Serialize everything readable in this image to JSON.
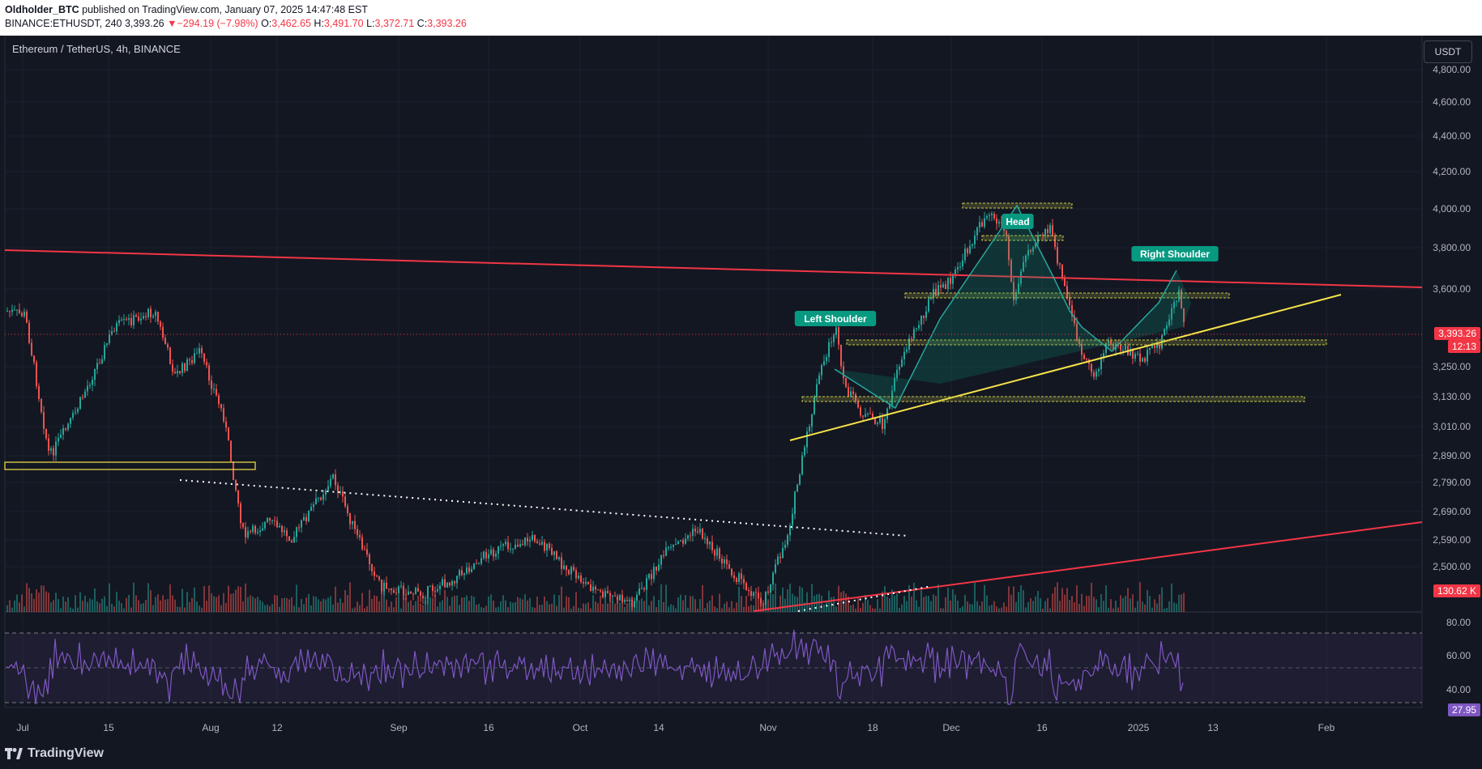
{
  "header": {
    "author": "Oldholder_BTC",
    "published": "published on TradingView.com, January 07, 2025 14:47:48 EST",
    "symbol_line_prefix": "BINANCE:ETHUSDT, 240",
    "last_price": "3,393.26",
    "change_arrow": "▼",
    "change": "−294.19 (−7.98%)",
    "o_label": "O:",
    "o_value": "3,462.65",
    "h_label": "H:",
    "h_value": "3,491.70",
    "l_label": "L:",
    "l_value": "3,372.71",
    "c_label": "C:",
    "c_value": "3,393.26"
  },
  "chart": {
    "title": "Ethereum / TetherUS, 4h, BINANCE",
    "currency": "USDT",
    "price_axis": [
      "4,800.00",
      "4,600.00",
      "4,400.00",
      "4,200.00",
      "4,000.00",
      "3,800.00",
      "3,600.00",
      "3,250.00",
      "3,130.00",
      "3,010.00",
      "2,890.00",
      "2,790.00",
      "2,690.00",
      "2,590.00",
      "2,500.00"
    ],
    "rsi_axis": [
      "80.00",
      "60.00",
      "40.00"
    ],
    "time_axis": [
      "Jul",
      "15",
      "Aug",
      "12",
      "Sep",
      "16",
      "Oct",
      "14",
      "Nov",
      "18",
      "Dec",
      "16",
      "2025",
      "13",
      "Feb"
    ],
    "current_price_tag": "3,393.26",
    "countdown_tag": "12:13",
    "volume_tag": "130.62 K",
    "rsi_tag": "27.95",
    "annotations": {
      "left_shoulder": "Left Shoulder",
      "head": "Head",
      "right_shoulder": "Right Shoulder"
    },
    "colors": {
      "background": "#131722",
      "up": "#26a69a",
      "down": "#ef5350",
      "trendline_red": "#f23645",
      "neckline_yellow": "#f7e34a",
      "rsi": "#7e57c2",
      "label_teal": "#089981"
    }
  },
  "footer": {
    "brand": "TradingView"
  }
}
